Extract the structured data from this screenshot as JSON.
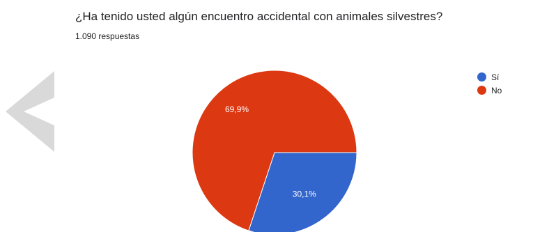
{
  "title": "¿Ha tenido usted algún encuentro accidental con animales silvestres?",
  "subtitle": "1.090 respuestas",
  "chart_data": {
    "type": "pie",
    "title": "¿Ha tenido usted algún encuentro accidental con animales silvestres?",
    "categories": [
      "Sí",
      "No"
    ],
    "values": [
      30.1,
      69.9
    ],
    "labels": [
      "30,1%",
      "69,9%"
    ],
    "colors": [
      "#3366cc",
      "#dc3912"
    ],
    "legend_position": "right"
  },
  "legend": [
    {
      "label": "Sí",
      "color": "#3366cc"
    },
    {
      "label": "No",
      "color": "#dc3912"
    }
  ]
}
